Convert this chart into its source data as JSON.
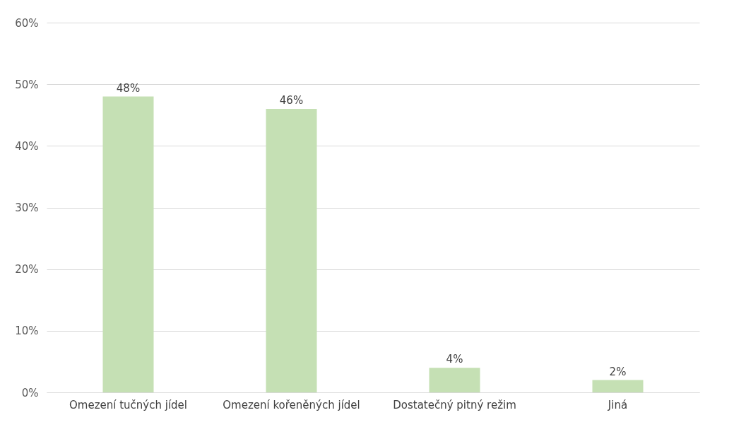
{
  "chart_data": {
    "type": "bar",
    "categories": [
      "Omezení tučných jídel",
      "Omezení kořeněných jídel",
      "Dostatečný pitný režim",
      "Jiná"
    ],
    "values": [
      48,
      46,
      4,
      2
    ],
    "color": "#c5e0b4",
    "value_labels": [
      "48%",
      "46%",
      "4%",
      "2%"
    ],
    "ylim": [
      0,
      60
    ],
    "yticks": [
      {
        "value": 0,
        "label": "0%"
      },
      {
        "value": 10,
        "label": "10%"
      },
      {
        "value": 20,
        "label": "20%"
      },
      {
        "value": 30,
        "label": "30%"
      },
      {
        "value": 40,
        "label": "40%"
      },
      {
        "value": 50,
        "label": "50%"
      },
      {
        "value": 60,
        "label": "60%"
      }
    ],
    "grid": "y"
  }
}
